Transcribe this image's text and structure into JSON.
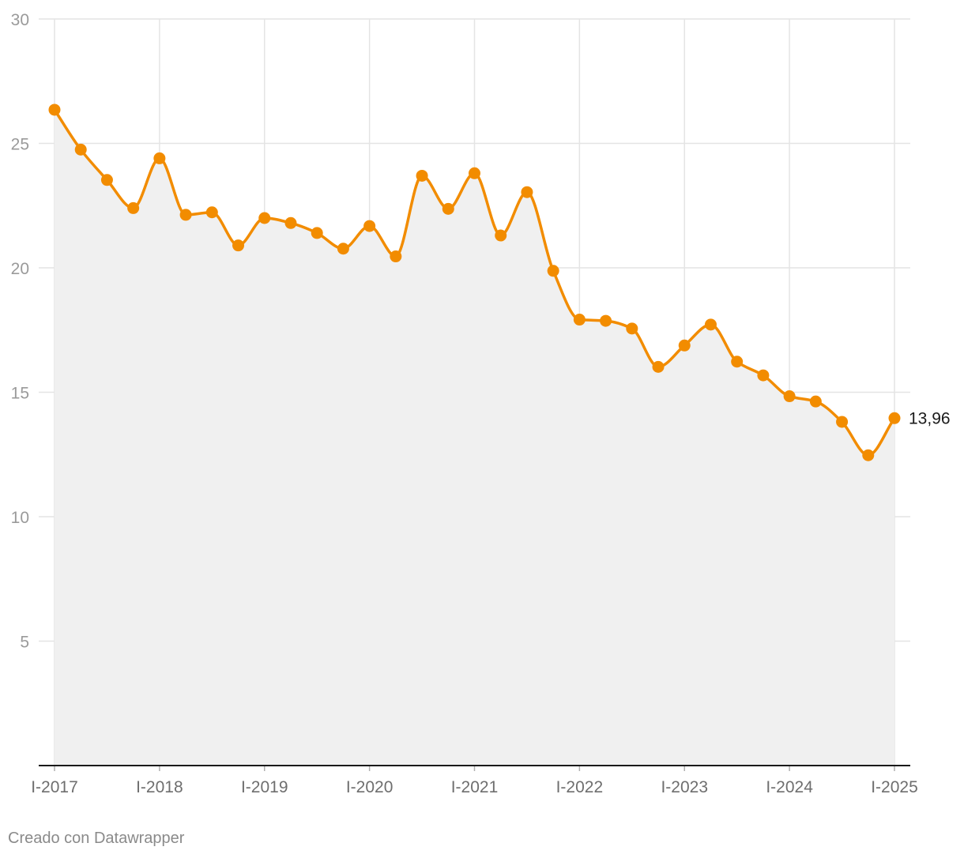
{
  "chart_data": {
    "type": "area",
    "title": "",
    "xlabel": "",
    "ylabel": "",
    "ylim": [
      0,
      30
    ],
    "yticks": [
      "5",
      "10",
      "15",
      "20",
      "25",
      "30"
    ],
    "xtick_labels": [
      "I-2017",
      "I-2018",
      "I-2019",
      "I-2020",
      "I-2021",
      "I-2022",
      "I-2023",
      "I-2024",
      "I-2025"
    ],
    "x": [
      "I-2017",
      "II-2017",
      "III-2017",
      "IV-2017",
      "I-2018",
      "II-2018",
      "III-2018",
      "IV-2018",
      "I-2019",
      "II-2019",
      "III-2019",
      "IV-2019",
      "I-2020",
      "II-2020",
      "III-2020",
      "IV-2020",
      "I-2021",
      "II-2021",
      "III-2021",
      "IV-2021",
      "I-2022",
      "II-2022",
      "III-2022",
      "IV-2022",
      "I-2023",
      "II-2023",
      "III-2023",
      "IV-2023",
      "I-2024",
      "II-2024",
      "III-2024",
      "IV-2024",
      "I-2025"
    ],
    "values": [
      26.35,
      24.75,
      23.53,
      22.4,
      24.4,
      22.13,
      22.23,
      20.9,
      22.0,
      21.8,
      21.4,
      20.77,
      21.68,
      20.46,
      23.7,
      22.37,
      23.8,
      21.3,
      23.04,
      19.88,
      17.92,
      17.87,
      17.56,
      16.02,
      16.88,
      17.72,
      16.23,
      15.68,
      14.84,
      14.63,
      13.81,
      12.47,
      13.96
    ],
    "end_label": "13,96",
    "grid": true,
    "line_color": "#f28c00",
    "area_color": "#f0f0f0",
    "grid_color": "#e4e4e4",
    "axis_color": "#1a1a1a"
  },
  "footer": {
    "credit": "Creado con Datawrapper"
  }
}
